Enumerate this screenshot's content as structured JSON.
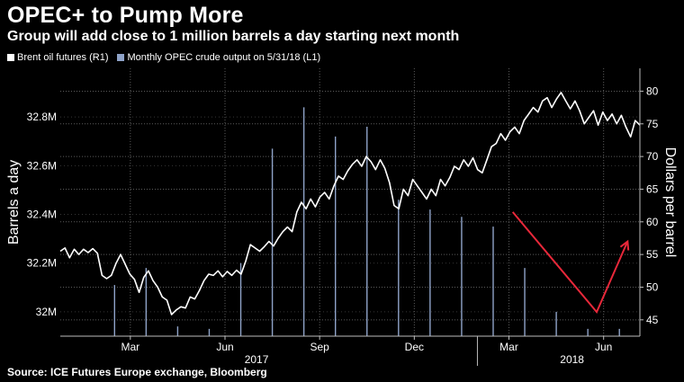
{
  "header": {
    "title": "OPEC+ to Pump More",
    "subtitle": "Group will add close to 1 million barrels a day starting next month"
  },
  "footer": {
    "source": "Source: ICE Futures Europe exchange, Bloomberg"
  },
  "colors": {
    "background": "#000000",
    "brent_line": "#ffffff",
    "opec_bars": "#8fa3c8",
    "annotation_arrow": "#e8283a",
    "grid": "#5a5a5a"
  },
  "chart_data": {
    "type": "bar+line",
    "title": "OPEC+ to Pump More",
    "subtitle": "Group will add close to 1 million barrels a day starting next month",
    "legend": [
      {
        "label": "Brent oil futures (R1)",
        "color": "#ffffff"
      },
      {
        "label": "Monthly OPEC crude output on 5/31/18 (L1)",
        "color": "#8fa3c8"
      }
    ],
    "x_tick_labels": [
      "Mar",
      "Jun",
      "Sep",
      "Dec",
      "Mar",
      "Jun"
    ],
    "x_tick_months": [
      2,
      5,
      8,
      11,
      14,
      17
    ],
    "x_year_labels": [
      {
        "label": "2017",
        "month": 5.5
      },
      {
        "label": "2018",
        "month": 15.5
      }
    ],
    "left_axis": {
      "label": "Barrels a day",
      "range": [
        31.9,
        33.0
      ],
      "ticks": [
        32.0,
        32.2,
        32.4,
        32.6,
        32.8
      ],
      "tick_labels": [
        "32M",
        "32.2M",
        "32.4M",
        "32.6M",
        "32.8M"
      ]
    },
    "right_axis": {
      "label": "Dollars per barrel",
      "range": [
        42.5,
        83.5
      ],
      "ticks": [
        45,
        50,
        55,
        60,
        65,
        70,
        75,
        80
      ],
      "tick_labels": [
        "45",
        "50",
        "55",
        "60",
        "65",
        "70",
        "75",
        "80"
      ]
    },
    "opec_output": {
      "name": "Monthly OPEC crude output on 5/31/18 (L1)",
      "months": [
        1,
        2,
        3,
        4,
        5,
        6,
        7,
        8,
        9,
        10,
        11,
        12,
        13,
        14,
        15,
        16,
        17
      ],
      "values": [
        32.11,
        32.18,
        31.94,
        31.93,
        32.2,
        32.67,
        32.84,
        32.72,
        32.76,
        32.46,
        32.42,
        32.39,
        32.35,
        32.18,
        32.0,
        31.93,
        31.93
      ]
    },
    "brent": {
      "name": "Brent oil futures (R1)",
      "points": [
        [
          0.0,
          55.5
        ],
        [
          0.3,
          56.0
        ],
        [
          0.6,
          54.5
        ],
        [
          0.9,
          55.8
        ],
        [
          1.2,
          55.0
        ],
        [
          1.5,
          55.8
        ],
        [
          1.8,
          55.3
        ],
        [
          2.1,
          55.9
        ],
        [
          2.4,
          55.2
        ],
        [
          2.7,
          51.8
        ],
        [
          3.0,
          51.3
        ],
        [
          3.3,
          51.8
        ],
        [
          3.6,
          53.6
        ],
        [
          3.9,
          55.0
        ],
        [
          4.2,
          53.5
        ],
        [
          4.5,
          52.0
        ],
        [
          4.8,
          51.2
        ],
        [
          5.1,
          49.2
        ],
        [
          5.4,
          51.5
        ],
        [
          5.7,
          52.5
        ],
        [
          6.0,
          51.0
        ],
        [
          6.3,
          50.0
        ],
        [
          6.6,
          48.5
        ],
        [
          6.9,
          48.0
        ],
        [
          7.2,
          45.8
        ],
        [
          7.5,
          46.5
        ],
        [
          7.8,
          47.0
        ],
        [
          8.1,
          46.8
        ],
        [
          8.4,
          48.5
        ],
        [
          8.7,
          48.2
        ],
        [
          9.0,
          49.5
        ],
        [
          9.3,
          51.0
        ],
        [
          9.6,
          52.0
        ],
        [
          9.9,
          51.8
        ],
        [
          10.2,
          52.5
        ],
        [
          10.5,
          51.6
        ],
        [
          10.8,
          52.4
        ],
        [
          11.1,
          51.8
        ],
        [
          11.4,
          52.6
        ],
        [
          11.7,
          52.0
        ],
        [
          12.0,
          54.0
        ],
        [
          12.3,
          56.5
        ],
        [
          12.6,
          56.0
        ],
        [
          12.9,
          55.5
        ],
        [
          13.2,
          56.2
        ],
        [
          13.5,
          57.0
        ],
        [
          13.8,
          56.3
        ],
        [
          14.1,
          57.5
        ],
        [
          14.4,
          58.5
        ],
        [
          14.7,
          59.2
        ],
        [
          15.0,
          58.5
        ],
        [
          15.3,
          61.5
        ],
        [
          15.6,
          63.0
        ],
        [
          15.9,
          62.0
        ],
        [
          16.2,
          63.5
        ],
        [
          16.5,
          62.3
        ],
        [
          16.8,
          63.8
        ],
        [
          17.1,
          64.5
        ],
        [
          17.4,
          63.5
        ],
        [
          17.7,
          65.5
        ],
        [
          18.0,
          67.0
        ],
        [
          18.3,
          66.5
        ],
        [
          18.6,
          67.8
        ],
        [
          18.9,
          68.8
        ],
        [
          19.2,
          69.5
        ],
        [
          19.5,
          68.5
        ],
        [
          19.8,
          70.0
        ],
        [
          20.1,
          69.2
        ],
        [
          20.4,
          68.0
        ],
        [
          20.7,
          69.5
        ],
        [
          21.0,
          68.2
        ],
        [
          21.3,
          66.0
        ],
        [
          21.6,
          62.5
        ],
        [
          21.9,
          62.0
        ],
        [
          22.2,
          65.0
        ],
        [
          22.5,
          64.0
        ],
        [
          22.8,
          66.5
        ],
        [
          23.1,
          65.5
        ],
        [
          23.4,
          64.5
        ],
        [
          23.7,
          63.5
        ],
        [
          24.0,
          65.0
        ],
        [
          24.3,
          64.0
        ],
        [
          24.6,
          66.5
        ],
        [
          24.9,
          65.5
        ],
        [
          25.2,
          66.8
        ],
        [
          25.5,
          68.5
        ],
        [
          25.8,
          68.0
        ],
        [
          26.1,
          69.5
        ],
        [
          26.4,
          68.5
        ],
        [
          26.7,
          69.8
        ],
        [
          27.0,
          68.0
        ],
        [
          27.3,
          67.5
        ],
        [
          27.6,
          69.5
        ],
        [
          27.9,
          71.5
        ],
        [
          28.2,
          72.0
        ],
        [
          28.5,
          73.5
        ],
        [
          28.8,
          72.5
        ],
        [
          29.1,
          73.8
        ],
        [
          29.4,
          74.5
        ],
        [
          29.7,
          73.5
        ],
        [
          30.0,
          75.5
        ],
        [
          30.3,
          76.5
        ],
        [
          30.6,
          77.5
        ],
        [
          30.9,
          76.8
        ],
        [
          31.2,
          78.5
        ],
        [
          31.5,
          79.0
        ],
        [
          31.8,
          77.5
        ],
        [
          32.1,
          78.8
        ],
        [
          32.4,
          79.8
        ],
        [
          32.7,
          78.5
        ],
        [
          33.0,
          77.3
        ],
        [
          33.3,
          78.5
        ],
        [
          33.6,
          77.0
        ],
        [
          33.9,
          75.0
        ],
        [
          34.2,
          76.0
        ],
        [
          34.5,
          77.0
        ],
        [
          34.8,
          74.8
        ],
        [
          35.1,
          76.8
        ],
        [
          35.4,
          75.5
        ],
        [
          35.7,
          76.5
        ],
        [
          36.0,
          75.0
        ],
        [
          36.3,
          76.3
        ],
        [
          36.6,
          74.5
        ],
        [
          36.9,
          73.0
        ],
        [
          37.2,
          75.5
        ],
        [
          37.5,
          74.8
        ]
      ],
      "x_domain": [
        0,
        37.5
      ],
      "month_domain": [
        -0.72,
        17.65
      ]
    },
    "annotation": {
      "type": "arrow",
      "description_points_month_dollar": [
        [
          13.62,
          61.5
        ],
        [
          16.28,
          46.2
        ],
        [
          17.26,
          57.0
        ]
      ]
    },
    "grid": true
  }
}
